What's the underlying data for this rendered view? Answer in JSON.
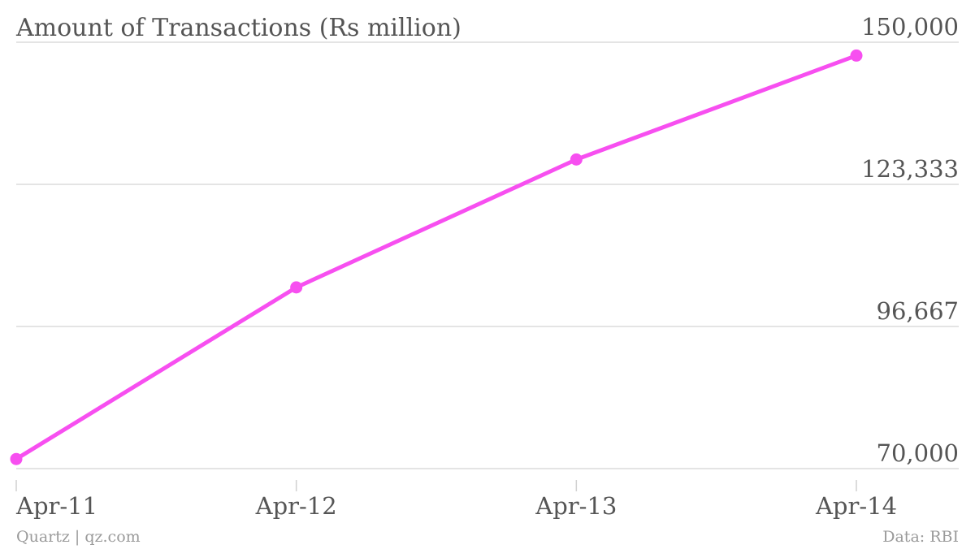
{
  "chart_data": {
    "type": "line",
    "title": "Amount of Transactions (Rs million)",
    "categories": [
      "Apr-11",
      "Apr-12",
      "Apr-13",
      "Apr-14"
    ],
    "series": [
      {
        "values": [
          71800,
          104000,
          128000,
          147500
        ]
      }
    ],
    "ylim": [
      70000,
      150000
    ],
    "yticks": [
      "70,000",
      "96,667",
      "123,333",
      "150,000"
    ],
    "y_axis_side": "right",
    "grid": true,
    "legend": "none"
  },
  "footer": {
    "left": "Quartz | qz.com",
    "right": "Data: RBI"
  },
  "colors": {
    "line": "#f74ff0",
    "grid": "#dcdcdc",
    "text": "#555555",
    "footer": "#9a9a9a"
  }
}
